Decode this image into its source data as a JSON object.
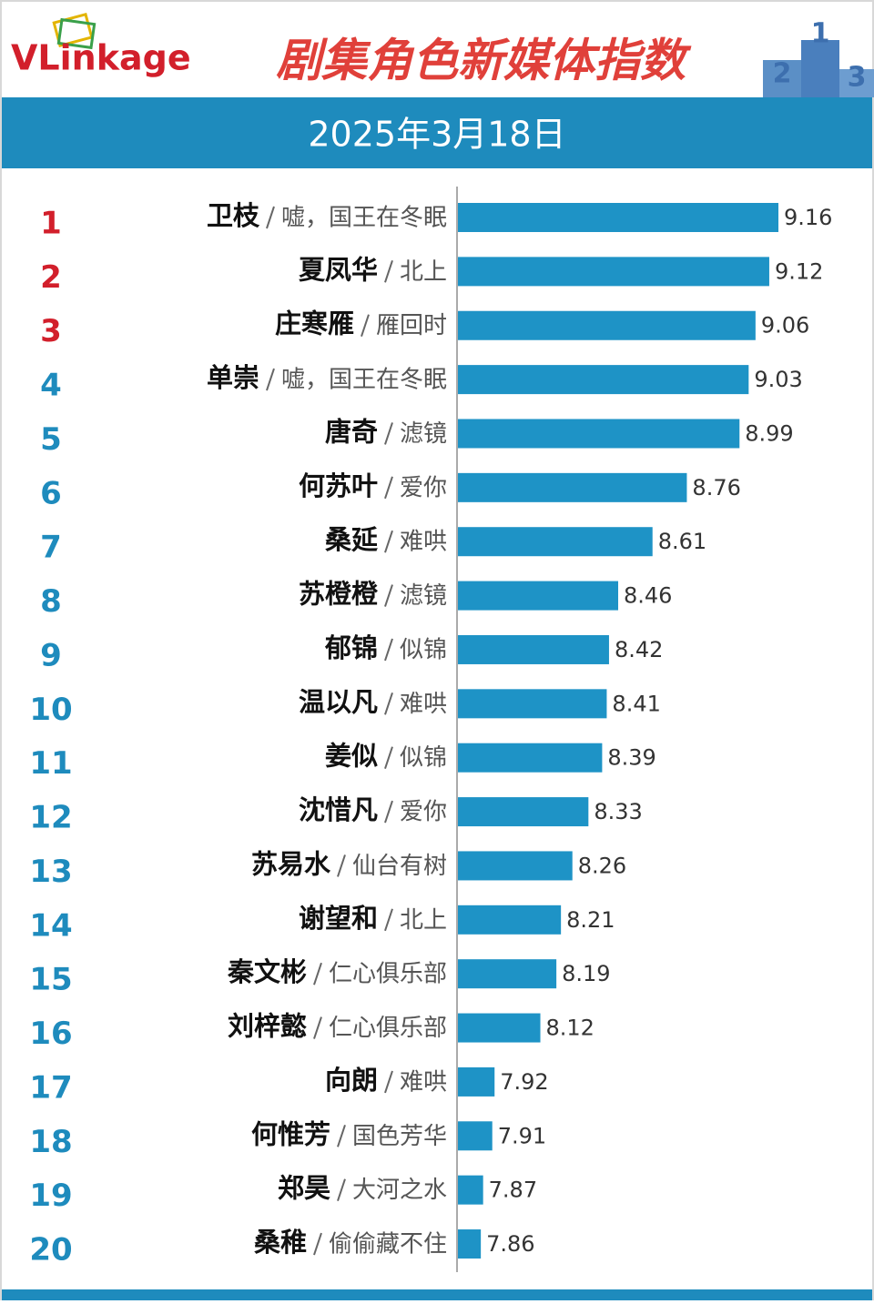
{
  "chart_data": {
    "type": "bar",
    "orientation": "horizontal",
    "logo": "VLinkage",
    "title": "剧集角色新媒体指数",
    "subtitle": "2025年3月18日",
    "podium_labels": [
      "2",
      "1",
      "3"
    ],
    "ranks": [
      1,
      2,
      3,
      4,
      5,
      6,
      7,
      8,
      9,
      10,
      11,
      12,
      13,
      14,
      15,
      16,
      17,
      18,
      19,
      20
    ],
    "rank_colors": [
      "#d21f2b",
      "#d21f2b",
      "#d21f2b",
      "#1e8bbd",
      "#1e8bbd",
      "#1e8bbd",
      "#1e8bbd",
      "#1e8bbd",
      "#1e8bbd",
      "#1e8bbd",
      "#1e8bbd",
      "#1e8bbd",
      "#1e8bbd",
      "#1e8bbd",
      "#1e8bbd",
      "#1e8bbd",
      "#1e8bbd",
      "#1e8bbd",
      "#1e8bbd",
      "#1e8bbd"
    ],
    "categories": [
      "卫枝",
      "夏凤华",
      "庄寒雁",
      "单崇",
      "唐奇",
      "何苏叶",
      "桑延",
      "苏橙橙",
      "郁锦",
      "温以凡",
      "姜似",
      "沈惜凡",
      "苏易水",
      "谢望和",
      "秦文彬",
      "刘梓懿",
      "向朗",
      "何惟芳",
      "郑昊",
      "桑稚"
    ],
    "dramas": [
      "嘘，国王在冬眠",
      "北上",
      "雁回时",
      "嘘，国王在冬眠",
      "滤镜",
      "爱你",
      "难哄",
      "滤镜",
      "似锦",
      "难哄",
      "似锦",
      "爱你",
      "仙台有树",
      "北上",
      "仁心俱乐部",
      "仁心俱乐部",
      "难哄",
      "国色芳华",
      "大河之水",
      "偷偷藏不住"
    ],
    "values": [
      9.16,
      9.12,
      9.06,
      9.03,
      8.99,
      8.76,
      8.61,
      8.46,
      8.42,
      8.41,
      8.39,
      8.33,
      8.26,
      8.21,
      8.19,
      8.12,
      7.92,
      7.91,
      7.87,
      7.86
    ],
    "color": "#1e93c6",
    "xlim": [
      7.76,
      9.5
    ]
  }
}
